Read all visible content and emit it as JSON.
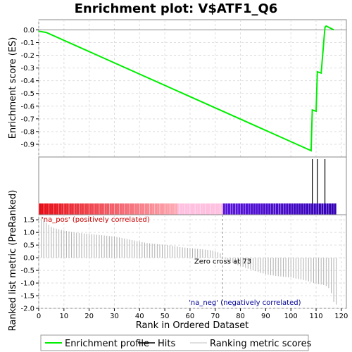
{
  "chart_data": {
    "type": "line",
    "title": "Enrichment plot: V$ATF1_Q6",
    "xlabel": "Rank in Ordered Dataset",
    "ylabel_top": "Enrichment score (ES)",
    "ylabel_bottom": "Ranked list metric (PreRanked)",
    "xlim": [
      0,
      122
    ],
    "x_ticks": [
      0,
      10,
      20,
      30,
      40,
      50,
      60,
      70,
      80,
      90,
      100,
      110,
      120
    ],
    "es_ylim": [
      -1.0,
      0.08
    ],
    "es_ticks": [
      0.0,
      -0.1,
      -0.2,
      -0.3,
      -0.4,
      -0.5,
      -0.6,
      -0.7,
      -0.8,
      -0.9
    ],
    "es_tick_labels": [
      "0.0",
      "-0.1",
      "-0.2",
      "-0.3",
      "-0.4",
      "-0.5",
      "-0.6",
      "-0.7",
      "-0.8",
      "-0.9"
    ],
    "metric_ylim": [
      -2.0,
      1.7
    ],
    "metric_ticks": [
      1.5,
      1.0,
      0.5,
      0.0,
      -0.5,
      -1.0,
      -1.5,
      -2.0
    ],
    "metric_tick_labels": [
      "1.5",
      "1.0",
      "0.5",
      "0.0",
      "-0.5",
      "-1.0",
      "-1.5",
      "-2.0"
    ],
    "series": [
      {
        "name": "Enrichment profile",
        "color": "#00ee00",
        "x": [
          0,
          3,
          108,
          108.5,
          110,
          110.5,
          112,
          113.5,
          114,
          117
        ],
        "y": [
          -0.01,
          -0.02,
          -0.95,
          -0.63,
          -0.64,
          -0.33,
          -0.34,
          0.02,
          0.03,
          0.0
        ]
      }
    ],
    "hits": [
      108.5,
      110.5,
      113.5
    ],
    "n_genes": 118,
    "zero_cross": 73,
    "metric": {
      "x_start": 1,
      "values": [
        1.62,
        1.45,
        1.38,
        1.3,
        1.22,
        1.18,
        1.15,
        1.12,
        1.1,
        1.08,
        1.06,
        1.04,
        1.02,
        1.0,
        0.99,
        0.98,
        0.97,
        0.96,
        0.95,
        0.94,
        0.93,
        0.92,
        0.91,
        0.9,
        0.89,
        0.88,
        0.87,
        0.86,
        0.85,
        0.84,
        0.82,
        0.8,
        0.78,
        0.76,
        0.74,
        0.72,
        0.7,
        0.68,
        0.66,
        0.64,
        0.62,
        0.6,
        0.58,
        0.57,
        0.56,
        0.55,
        0.54,
        0.53,
        0.52,
        0.51,
        0.5,
        0.49,
        0.48,
        0.46,
        0.44,
        0.42,
        0.41,
        0.4,
        0.39,
        0.38,
        0.37,
        0.36,
        0.35,
        0.34,
        0.33,
        0.32,
        0.31,
        0.3,
        0.28,
        0.25,
        0.22,
        0.18,
        0.05,
        -0.05,
        -0.1,
        -0.15,
        -0.2,
        -0.25,
        -0.3,
        -0.33,
        -0.36,
        -0.4,
        -0.43,
        -0.46,
        -0.5,
        -0.53,
        -0.56,
        -0.6,
        -0.62,
        -0.65,
        -0.67,
        -0.69,
        -0.7,
        -0.72,
        -0.73,
        -0.74,
        -0.75,
        -0.76,
        -0.77,
        -0.78,
        -0.8,
        -0.82,
        -0.84,
        -0.86,
        -0.88,
        -0.9,
        -0.93,
        -0.96,
        -1.0,
        -1.02,
        -1.04,
        -1.06,
        -1.08,
        -1.12,
        -1.2,
        -1.4,
        -1.75,
        -1.85
      ]
    },
    "annotations": {
      "pos": "'na_pos' (positively correlated)",
      "neg": "'na_neg' (negatively correlated)",
      "zero": "Zero cross at 73"
    },
    "legend": [
      {
        "label": "Enrichment profile",
        "color": "#00ee00"
      },
      {
        "label": "Hits",
        "color": "#000000"
      },
      {
        "label": "Ranking metric scores",
        "color": "#c0c0c0"
      }
    ],
    "grid": true
  }
}
